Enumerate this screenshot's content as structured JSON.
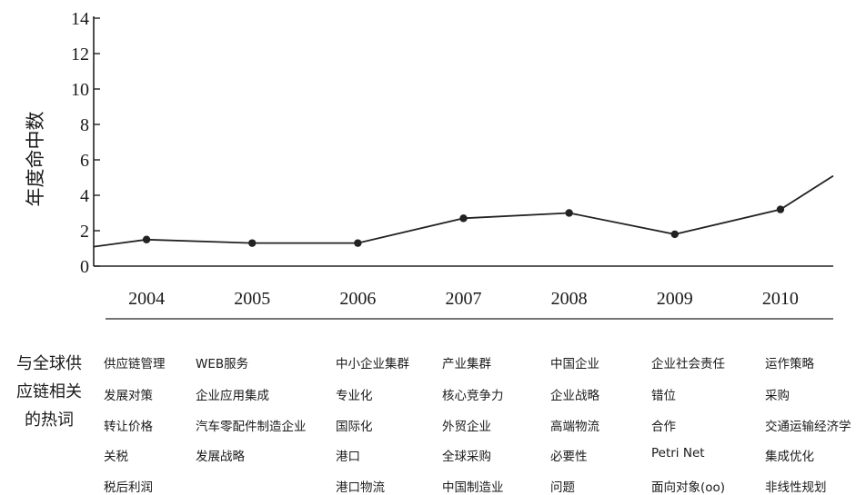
{
  "chart_data": {
    "type": "line",
    "ylabel": "年度命中数",
    "xlabel": "",
    "ylim": [
      0,
      14
    ],
    "yticks": [
      "0",
      "2",
      "4",
      "6",
      "8",
      "10",
      "12",
      "14"
    ],
    "x_start": 2003.5,
    "x_end": 2010.5,
    "categories": [
      "2004",
      "2005",
      "2006",
      "2007",
      "2008",
      "2009",
      "2010"
    ],
    "series": [
      {
        "x": [
          2003.5,
          2004,
          2005,
          2006,
          2007,
          2008,
          2009,
          2010,
          2010.5
        ],
        "values": [
          1.1,
          1.5,
          1.3,
          1.3,
          2.7,
          3.0,
          1.8,
          3.2,
          5.1
        ],
        "markers": [
          false,
          true,
          true,
          true,
          true,
          true,
          true,
          true,
          false
        ]
      }
    ],
    "line_color": "#222222"
  },
  "hotwords_label": [
    "与全球供",
    "应链相关",
    "的热词"
  ],
  "hotwords": [
    [
      "供应链管理",
      "发展对策",
      "转让价格",
      "关税",
      "税后利润"
    ],
    [
      "WEB服务",
      "企业应用集成",
      "汽车零配件制造企业",
      "发展战略"
    ],
    [
      "中小企业集群",
      "专业化",
      "国际化",
      "港口",
      "港口物流"
    ],
    [
      "产业集群",
      "核心竞争力",
      "外贸企业",
      "全球采购",
      "中国制造业"
    ],
    [
      "中国企业",
      "企业战略",
      "高端物流",
      "必要性",
      "问题"
    ],
    [
      "企业社会责任",
      "错位",
      "合作",
      "Petri Net",
      "面向对象(oo)"
    ],
    [
      "运作策略",
      "采购",
      "交通运输经济学",
      "集成优化",
      "非线性规划"
    ]
  ]
}
